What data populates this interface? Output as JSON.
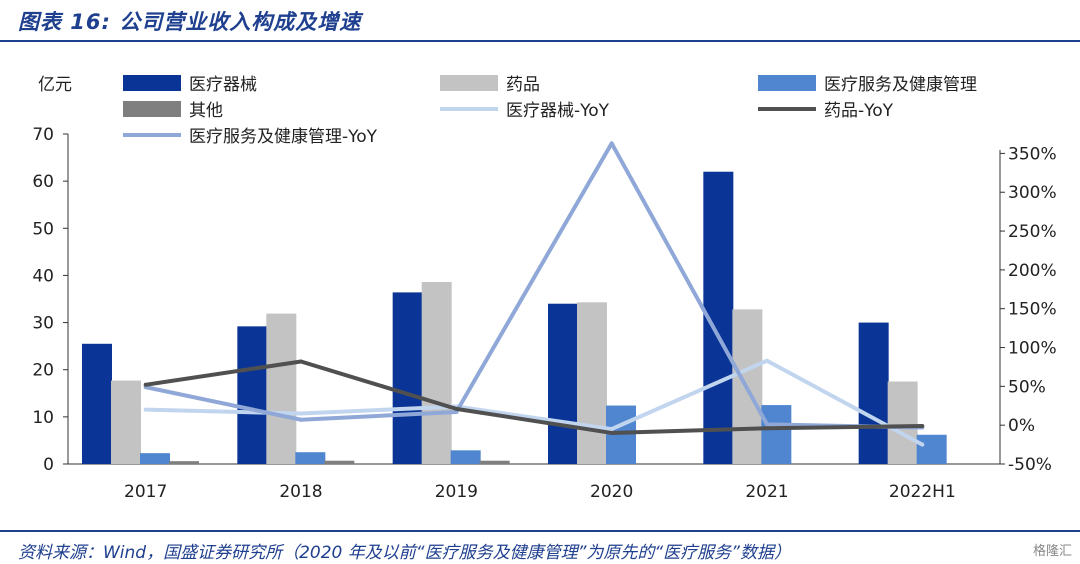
{
  "header": {
    "title": "图表 16: 公司营业收入构成及增速"
  },
  "footer": {
    "source": "资料来源：Wind，国盛证券研究所（2020 年及以前“医疗服务及健康管理”为原先的“医疗服务”数据）",
    "watermark": "格隆汇"
  },
  "colors": {
    "device": "#0a3596",
    "drug": "#c3c3c3",
    "service": "#4f86cf",
    "other": "#7f7f7f",
    "device_yoy": "#c2d5ee",
    "drug_yoy": "#505050",
    "service_yoy": "#8fa8d8"
  },
  "chart_data": {
    "type": "bar",
    "title": "公司营业收入构成及增速",
    "ylabel": "亿元",
    "categories": [
      "2017",
      "2018",
      "2019",
      "2020",
      "2021",
      "2022H1"
    ],
    "ylim": [
      0,
      70
    ],
    "yticks": [
      "0",
      "10",
      "20",
      "30",
      "40",
      "50",
      "60",
      "70"
    ],
    "y2lim": [
      -50,
      375
    ],
    "y2ticks": [
      "-50%",
      "0%",
      "50%",
      "100%",
      "150%",
      "200%",
      "250%",
      "300%",
      "350%"
    ],
    "series": [
      {
        "name": "医疗器械",
        "kind": "bar",
        "values": [
          25.5,
          29.2,
          36.4,
          34.0,
          62.0,
          30.0
        ]
      },
      {
        "name": "药品",
        "kind": "bar",
        "values": [
          17.7,
          31.9,
          38.6,
          34.3,
          32.8,
          17.5
        ]
      },
      {
        "name": "医疗服务及健康管理",
        "kind": "bar",
        "values": [
          2.3,
          2.5,
          2.9,
          12.4,
          12.5,
          6.2
        ]
      },
      {
        "name": "其他",
        "kind": "bar",
        "values": [
          0.6,
          0.7,
          0.7,
          0.0,
          0.0,
          0.0
        ]
      },
      {
        "name": "医疗器械-YoY",
        "kind": "line",
        "axis": "right",
        "values": [
          20,
          15,
          24,
          -5,
          83,
          -25
        ]
      },
      {
        "name": "药品-YoY",
        "kind": "line",
        "axis": "right",
        "values": [
          52,
          82,
          21,
          -10,
          -4,
          -1
        ]
      },
      {
        "name": "医疗服务及健康管理-YoY",
        "kind": "line",
        "axis": "right",
        "values": [
          49,
          7,
          17,
          363,
          1,
          -3
        ]
      }
    ]
  }
}
